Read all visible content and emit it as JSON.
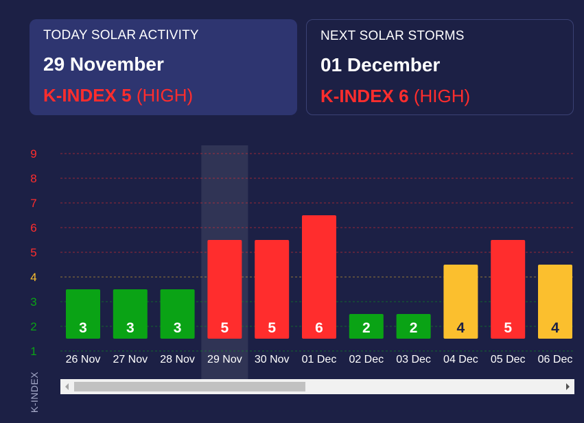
{
  "today": {
    "heading": "TODAY SOLAR ACTIVITY",
    "date": "29 November",
    "k_label": "K-INDEX 5",
    "level": "(HIGH)"
  },
  "next": {
    "heading": "NEXT SOLAR STORMS",
    "date": "01 December",
    "k_label": "K-INDEX 6",
    "level": "(HIGH)"
  },
  "colors": {
    "low": "#0aa315",
    "moderate": "#fbbf2e",
    "high": "#ff2d2d",
    "background": "#1c2045",
    "today_card": "#2e3570"
  },
  "scrollbar": {
    "icons": [
      "scroll-left-arrow",
      "scroll-right-arrow"
    ]
  },
  "chart_data": {
    "type": "bar",
    "ylabel": "K-INDEX",
    "ylim": [
      1,
      9
    ],
    "yticks": [
      1,
      2,
      3,
      4,
      5,
      6,
      7,
      8,
      9
    ],
    "grid": true,
    "highlighted_category": "29 Nov",
    "categories": [
      "26 Nov",
      "27 Nov",
      "28 Nov",
      "29 Nov",
      "30 Nov",
      "01 Dec",
      "02 Dec",
      "03 Dec",
      "04 Dec",
      "05 Dec",
      "06 Dec"
    ],
    "values": [
      3,
      3,
      3,
      5,
      5,
      6,
      2,
      2,
      4,
      5,
      4
    ]
  }
}
